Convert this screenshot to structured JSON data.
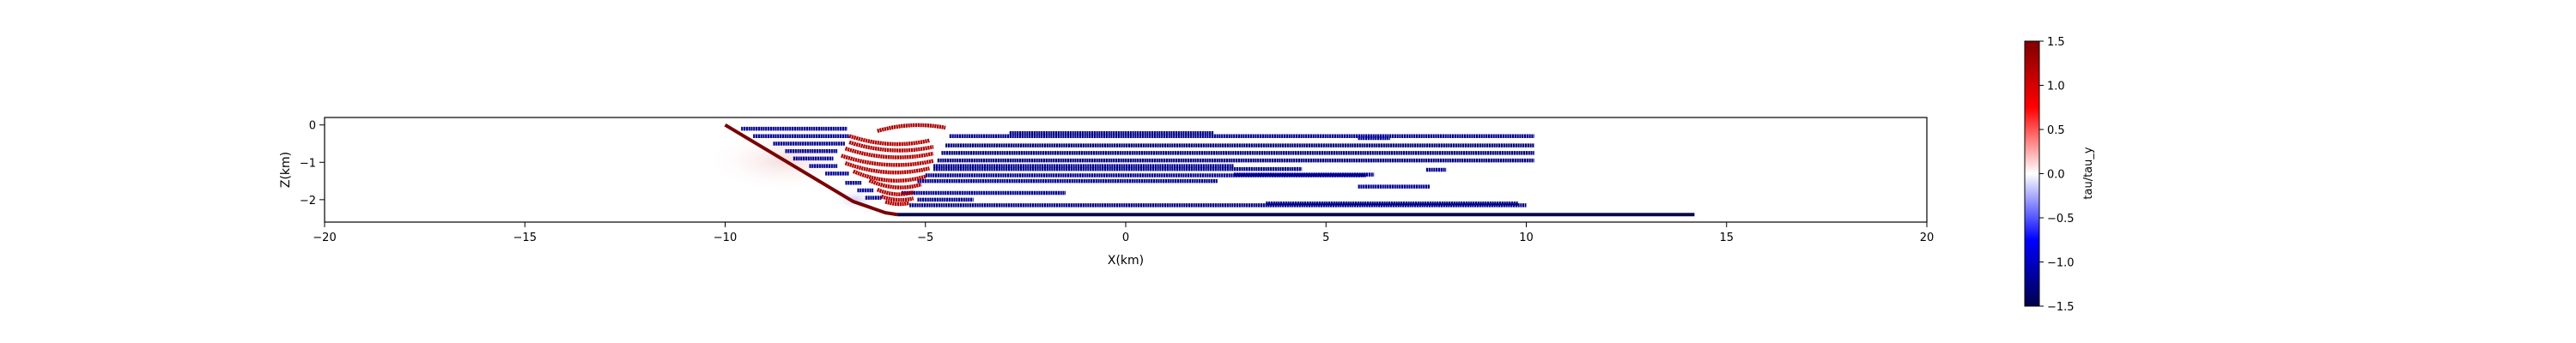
{
  "chart_data": {
    "type": "heatmap",
    "title": "",
    "xlabel": "X(km)",
    "ylabel": "Z(km)",
    "xlim": [
      -20,
      20
    ],
    "ylim": [
      -2.6,
      0.2
    ],
    "xticks": [
      -20,
      -15,
      -10,
      -5,
      0,
      5,
      10,
      15,
      20
    ],
    "xtick_labels": [
      "−20",
      "−15",
      "−10",
      "−5",
      "0",
      "5",
      "10",
      "15",
      "20"
    ],
    "yticks": [
      0,
      -1,
      -2
    ],
    "ytick_labels": [
      "0",
      "−1",
      "−2"
    ],
    "grid": false,
    "colorbar": {
      "label": "tau/tau_y",
      "vmin": -1.5,
      "vmax": 1.5,
      "ticks": [
        1.5,
        1.0,
        0.5,
        0.0,
        -0.5,
        -1.0,
        -1.5
      ],
      "tick_labels": [
        "1.5",
        "1.0",
        "0.5",
        "0.0",
        "−0.5",
        "−1.0",
        "−1.5"
      ],
      "colormap": "seismic",
      "colors": [
        "#00004c",
        "#0000ff",
        "#ffffff",
        "#ff0000",
        "#800000"
      ]
    },
    "main_fault": {
      "description": "dipping fault flattening into basal detachment",
      "x": [
        -10.0,
        -6.8,
        -6.0,
        -5.7,
        14.2
      ],
      "z": [
        0.0,
        -2.05,
        -2.35,
        -2.4,
        -2.4
      ],
      "color": "#7a0000",
      "color_basal": "#0a0a4a"
    },
    "segments_blue": [
      {
        "x": [
          -9.6,
          -6.95
        ],
        "z": -0.1,
        "value": -1.2
      },
      {
        "x": [
          -4.4,
          10.2
        ],
        "z": -0.3,
        "value": -1.2
      },
      {
        "x": [
          -2.9,
          2.2
        ],
        "z": -0.22,
        "value": -1.25
      },
      {
        "x": [
          -4.5,
          10.2
        ],
        "z": -0.55,
        "value": -1.3
      },
      {
        "x": [
          -4.6,
          10.2
        ],
        "z": -0.75,
        "value": -1.3
      },
      {
        "x": [
          -4.7,
          10.2
        ],
        "z": -0.95,
        "value": -1.3
      },
      {
        "x": [
          -4.8,
          4.4
        ],
        "z": -1.18,
        "value": -1.25
      },
      {
        "x": [
          -4.8,
          2.7
        ],
        "z": -1.1,
        "value": -1.2
      },
      {
        "x": [
          -5.0,
          6.0
        ],
        "z": -1.35,
        "value": -1.2
      },
      {
        "x": [
          -5.2,
          2.3
        ],
        "z": -1.5,
        "value": -1.2
      },
      {
        "x": [
          2.7,
          6.2
        ],
        "z": -1.33,
        "value": -1.2
      },
      {
        "x": [
          5.8,
          7.6
        ],
        "z": -1.65,
        "value": -1.2
      },
      {
        "x": [
          -5.6,
          -1.5
        ],
        "z": -1.82,
        "value": -1.2
      },
      {
        "x": [
          -5.2,
          -3.8
        ],
        "z": -2.0,
        "value": -1.2
      },
      {
        "x": [
          3.5,
          9.8
        ],
        "z": -2.1,
        "value": -1.2
      },
      {
        "x": [
          -5.4,
          10.0
        ],
        "z": -2.15,
        "value": -1.25
      },
      {
        "x": [
          -9.3,
          -6.9
        ],
        "z": -0.3,
        "value": -1.2
      },
      {
        "x": [
          -8.8,
          -7.0
        ],
        "z": -0.5,
        "value": -1.2
      },
      {
        "x": [
          -8.5,
          -7.2
        ],
        "z": -0.7,
        "value": -1.2
      },
      {
        "x": [
          -8.3,
          -7.3
        ],
        "z": -0.9,
        "value": -1.2
      },
      {
        "x": [
          -7.9,
          -7.2
        ],
        "z": -1.1,
        "value": -1.2
      },
      {
        "x": [
          -7.5,
          -6.9
        ],
        "z": -1.3,
        "value": -1.2
      },
      {
        "x": [
          -7.0,
          -6.6
        ],
        "z": -1.55,
        "value": -1.2
      },
      {
        "x": [
          -6.7,
          -6.3
        ],
        "z": -1.75,
        "value": -1.2
      },
      {
        "x": [
          -6.5,
          -6.1
        ],
        "z": -1.95,
        "value": -1.2
      },
      {
        "x": [
          7.5,
          8.0
        ],
        "z": -1.2,
        "value": -1.2
      },
      {
        "x": [
          5.8,
          6.6
        ],
        "z": -0.35,
        "value": -1.2
      }
    ],
    "segments_red": [
      {
        "x": [
          -6.9,
          -4.9
        ],
        "z": -0.45,
        "curve": 0.35,
        "value": 1.2
      },
      {
        "x": [
          -6.9,
          -4.8
        ],
        "z": -0.62,
        "curve": 0.35,
        "value": 1.2
      },
      {
        "x": [
          -7.0,
          -4.8
        ],
        "z": -0.8,
        "curve": 0.38,
        "value": 1.2
      },
      {
        "x": [
          -7.1,
          -4.8
        ],
        "z": -1.0,
        "curve": 0.4,
        "value": 1.2
      },
      {
        "x": [
          -7.0,
          -4.9
        ],
        "z": -1.2,
        "curve": 0.4,
        "value": 1.2
      },
      {
        "x": [
          -6.8,
          -5.0
        ],
        "z": -1.42,
        "curve": 0.4,
        "value": 1.2
      },
      {
        "x": [
          -6.4,
          -5.1
        ],
        "z": -1.62,
        "curve": 0.3,
        "value": 1.2
      },
      {
        "x": [
          -6.2,
          -5.3
        ],
        "z": -1.82,
        "curve": 0.2,
        "value": 1.2
      },
      {
        "x": [
          -6.1,
          -5.3
        ],
        "z": -1.98,
        "curve": 0.15,
        "value": 1.2
      },
      {
        "x": [
          -6.0,
          -5.4
        ],
        "z": -2.1,
        "curve": 0.1,
        "value": 1.2
      },
      {
        "x": [
          -6.2,
          -4.5
        ],
        "z": -0.05,
        "curve": -0.25,
        "value": 1.25
      }
    ],
    "shading": {
      "description": "faint stress field near fault",
      "regions": [
        {
          "x": [
            -10.5,
            -6.5
          ],
          "z": [
            -0.1,
            -1.8
          ],
          "value": 0.15
        },
        {
          "x": [
            -7.3,
            -6.2
          ],
          "z": [
            -1.7,
            -2.3
          ],
          "value": -0.25
        }
      ]
    }
  }
}
